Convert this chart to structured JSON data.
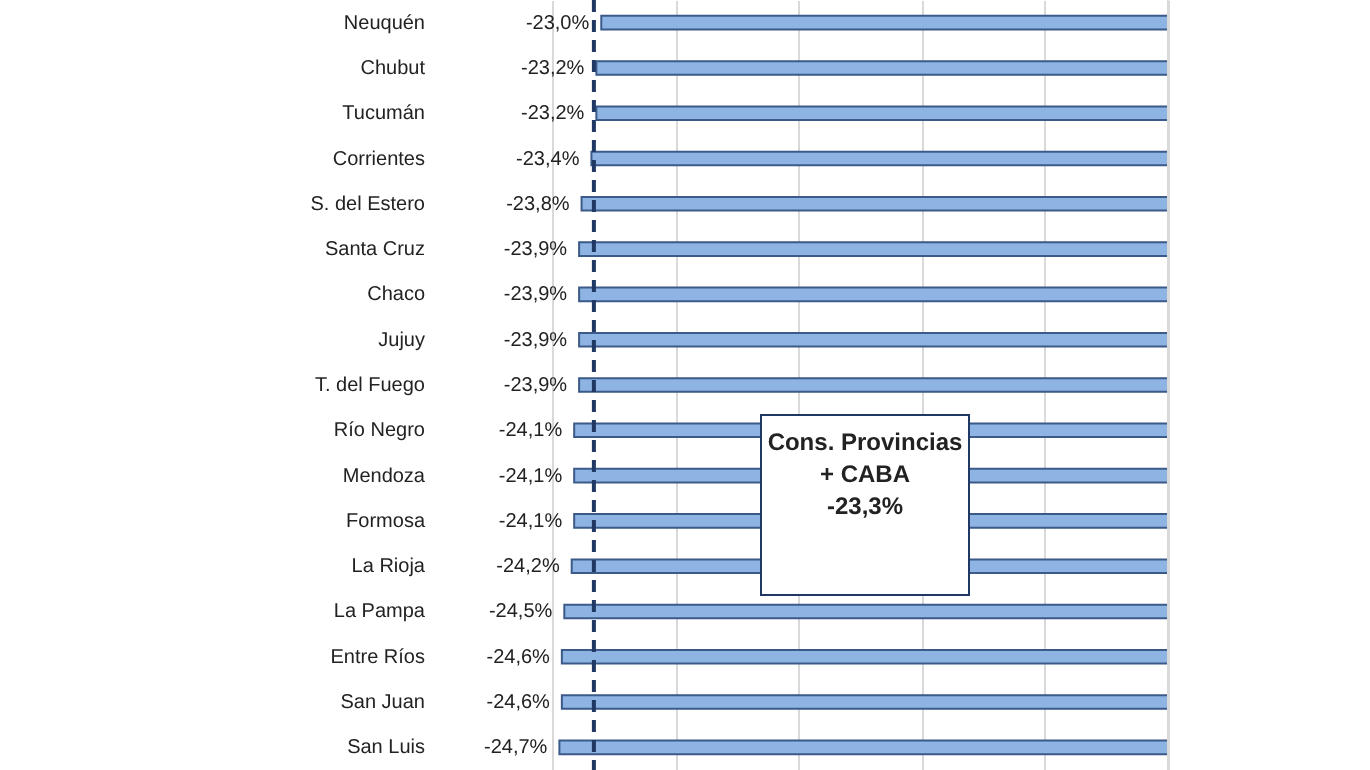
{
  "chart_data": {
    "type": "bar",
    "orientation": "horizontal",
    "categories": [
      "Neuquén",
      "Chubut",
      "Tucumán",
      "Corrientes",
      "S. del Estero",
      "Santa Cruz",
      "Chaco",
      "Jujuy",
      "T. del Fuego",
      "Río Negro",
      "Mendoza",
      "Formosa",
      "La Rioja",
      "La Pampa",
      "Entre Ríos",
      "San Juan",
      "San Luis"
    ],
    "values": [
      -23.0,
      -23.2,
      -23.2,
      -23.4,
      -23.8,
      -23.9,
      -23.9,
      -23.9,
      -23.9,
      -24.1,
      -24.1,
      -24.1,
      -24.2,
      -24.5,
      -24.6,
      -24.6,
      -24.7
    ],
    "value_labels": [
      "-23,0%",
      "-23,2%",
      "-23,2%",
      "-23,4%",
      "-23,8%",
      "-23,9%",
      "-23,9%",
      "-23,9%",
      "-23,9%",
      "-24,1%",
      "-24,1%",
      "-24,1%",
      "-24,2%",
      "-24,5%",
      "-24,6%",
      "-24,6%",
      "-24,7%"
    ],
    "color": "#8eb4e3",
    "xlim": [
      -25,
      0
    ],
    "xticks": [
      {
        "value": -25,
        "label": null
      },
      {
        "value": -20,
        "label": null
      },
      {
        "value": -15,
        "label": null
      },
      {
        "value": -10,
        "label": null
      },
      {
        "value": -5,
        "label": null
      },
      {
        "value": 0,
        "label": null
      }
    ],
    "grid": "x",
    "tick_labels": "y",
    "annotations": [
      "Cons. Provincias\n+ CABA\n-23,3%"
    ],
    "ref_lines": [
      {
        "axis": "x",
        "value": -23.3,
        "color": "#1f3864",
        "line_style": "dashed"
      }
    ]
  }
}
